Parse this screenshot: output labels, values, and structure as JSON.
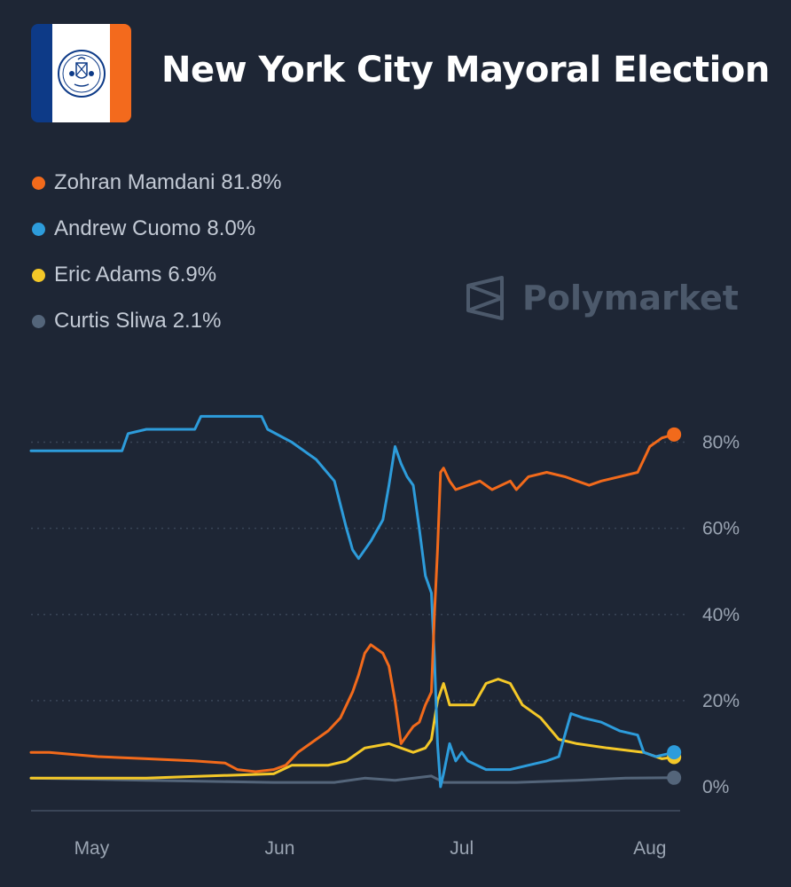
{
  "header": {
    "title": "New York City Mayoral Election"
  },
  "watermark": {
    "brand": "Polymarket"
  },
  "legend": [
    {
      "name": "Zohran Mamdani",
      "pct": "81.8%",
      "color": "#f26a1b"
    },
    {
      "name": "Andrew Cuomo",
      "pct": "8.0%",
      "color": "#2d9cdb"
    },
    {
      "name": "Eric Adams",
      "pct": "6.9%",
      "color": "#f4c828"
    },
    {
      "name": "Curtis Sliwa",
      "pct": "2.1%",
      "color": "#54657a"
    }
  ],
  "chart_data": {
    "type": "line",
    "title": "New York City Mayoral Election",
    "xlabel": "",
    "ylabel": "",
    "x_range": [
      "2025-04-21",
      "2025-08-06"
    ],
    "ylim": [
      0,
      90
    ],
    "y_ticks": [
      0,
      20,
      40,
      60,
      80
    ],
    "y_tick_labels": [
      "0%",
      "20%",
      "40%",
      "60%",
      "80%"
    ],
    "x_ticks": [
      {
        "date": "2025-05-01",
        "label": "May"
      },
      {
        "date": "2025-06-01",
        "label": "Jun"
      },
      {
        "date": "2025-07-01",
        "label": "Jul"
      },
      {
        "date": "2025-08-01",
        "label": "Aug"
      }
    ],
    "grid": "horizontal dotted",
    "legend_position": "top-left",
    "series": [
      {
        "name": "Zohran Mamdani",
        "color": "#f26a1b",
        "points": [
          [
            "2025-04-21",
            8
          ],
          [
            "2025-04-24",
            8
          ],
          [
            "2025-05-02",
            7
          ],
          [
            "2025-05-10",
            6.5
          ],
          [
            "2025-05-18",
            6
          ],
          [
            "2025-05-23",
            5.5
          ],
          [
            "2025-05-25",
            4
          ],
          [
            "2025-05-28",
            3.5
          ],
          [
            "2025-05-31",
            4
          ],
          [
            "2025-06-02",
            5
          ],
          [
            "2025-06-04",
            8
          ],
          [
            "2025-06-07",
            11
          ],
          [
            "2025-06-09",
            13
          ],
          [
            "2025-06-11",
            16
          ],
          [
            "2025-06-13",
            22
          ],
          [
            "2025-06-14",
            26
          ],
          [
            "2025-06-15",
            31
          ],
          [
            "2025-06-16",
            33
          ],
          [
            "2025-06-18",
            31
          ],
          [
            "2025-06-19",
            28
          ],
          [
            "2025-06-20",
            20
          ],
          [
            "2025-06-21",
            10
          ],
          [
            "2025-06-22",
            12
          ],
          [
            "2025-06-23",
            14
          ],
          [
            "2025-06-24",
            15
          ],
          [
            "2025-06-25",
            19
          ],
          [
            "2025-06-26",
            22
          ],
          [
            "2025-06-26T12:00",
            40
          ],
          [
            "2025-06-27",
            55
          ],
          [
            "2025-06-27T12:00",
            73
          ],
          [
            "2025-06-28",
            74
          ],
          [
            "2025-06-29",
            71
          ],
          [
            "2025-06-30",
            69
          ],
          [
            "2025-07-02",
            70
          ],
          [
            "2025-07-04",
            71
          ],
          [
            "2025-07-06",
            69
          ],
          [
            "2025-07-09",
            71
          ],
          [
            "2025-07-10",
            69
          ],
          [
            "2025-07-12",
            72
          ],
          [
            "2025-07-15",
            73
          ],
          [
            "2025-07-18",
            72
          ],
          [
            "2025-07-20",
            71
          ],
          [
            "2025-07-22",
            70
          ],
          [
            "2025-07-24",
            71
          ],
          [
            "2025-07-27",
            72
          ],
          [
            "2025-07-30",
            73
          ],
          [
            "2025-07-31",
            76
          ],
          [
            "2025-08-01",
            79
          ],
          [
            "2025-08-03",
            81
          ],
          [
            "2025-08-05",
            81.8
          ]
        ]
      },
      {
        "name": "Andrew Cuomo",
        "color": "#2d9cdb",
        "points": [
          [
            "2025-04-21",
            78
          ],
          [
            "2025-05-06",
            78
          ],
          [
            "2025-05-07",
            82
          ],
          [
            "2025-05-10",
            83
          ],
          [
            "2025-05-18",
            83
          ],
          [
            "2025-05-19",
            86
          ],
          [
            "2025-05-29",
            86
          ],
          [
            "2025-05-30",
            83
          ],
          [
            "2025-06-03",
            80
          ],
          [
            "2025-06-07",
            76
          ],
          [
            "2025-06-10",
            71
          ],
          [
            "2025-06-12",
            60
          ],
          [
            "2025-06-13",
            55
          ],
          [
            "2025-06-14",
            53
          ],
          [
            "2025-06-16",
            57
          ],
          [
            "2025-06-18",
            62
          ],
          [
            "2025-06-19",
            70
          ],
          [
            "2025-06-20",
            79
          ],
          [
            "2025-06-21",
            75
          ],
          [
            "2025-06-22",
            72
          ],
          [
            "2025-06-23",
            70
          ],
          [
            "2025-06-24",
            60
          ],
          [
            "2025-06-25",
            49
          ],
          [
            "2025-06-26",
            45
          ],
          [
            "2025-06-26T12:00",
            30
          ],
          [
            "2025-06-27",
            10
          ],
          [
            "2025-06-27T12:00",
            0
          ],
          [
            "2025-06-28",
            3
          ],
          [
            "2025-06-29",
            10
          ],
          [
            "2025-06-30",
            6
          ],
          [
            "2025-07-01",
            8
          ],
          [
            "2025-07-02",
            6
          ],
          [
            "2025-07-05",
            4
          ],
          [
            "2025-07-09",
            4
          ],
          [
            "2025-07-12",
            5
          ],
          [
            "2025-07-15",
            6
          ],
          [
            "2025-07-17",
            7
          ],
          [
            "2025-07-18",
            12
          ],
          [
            "2025-07-19",
            17
          ],
          [
            "2025-07-21",
            16
          ],
          [
            "2025-07-24",
            15
          ],
          [
            "2025-07-27",
            13
          ],
          [
            "2025-07-30",
            12
          ],
          [
            "2025-07-31",
            8
          ],
          [
            "2025-08-02",
            7
          ],
          [
            "2025-08-05",
            8
          ]
        ]
      },
      {
        "name": "Eric Adams",
        "color": "#f4c828",
        "points": [
          [
            "2025-04-21",
            2
          ],
          [
            "2025-05-10",
            2
          ],
          [
            "2025-05-20",
            2.5
          ],
          [
            "2025-05-31",
            3
          ],
          [
            "2025-06-03",
            5
          ],
          [
            "2025-06-09",
            5
          ],
          [
            "2025-06-12",
            6
          ],
          [
            "2025-06-15",
            9
          ],
          [
            "2025-06-19",
            10
          ],
          [
            "2025-06-21",
            9
          ],
          [
            "2025-06-23",
            8
          ],
          [
            "2025-06-25",
            9
          ],
          [
            "2025-06-26",
            11
          ],
          [
            "2025-06-27",
            20
          ],
          [
            "2025-06-28",
            24
          ],
          [
            "2025-06-29",
            19
          ],
          [
            "2025-07-01",
            19
          ],
          [
            "2025-07-03",
            19
          ],
          [
            "2025-07-05",
            24
          ],
          [
            "2025-07-07",
            25
          ],
          [
            "2025-07-09",
            24
          ],
          [
            "2025-07-11",
            19
          ],
          [
            "2025-07-14",
            16
          ],
          [
            "2025-07-17",
            11
          ],
          [
            "2025-07-20",
            10
          ],
          [
            "2025-07-25",
            9
          ],
          [
            "2025-07-31",
            8
          ],
          [
            "2025-08-03",
            6.5
          ],
          [
            "2025-08-05",
            6.9
          ]
        ]
      },
      {
        "name": "Curtis Sliwa",
        "color": "#54657a",
        "points": [
          [
            "2025-04-21",
            2
          ],
          [
            "2025-05-10",
            1.5
          ],
          [
            "2025-05-31",
            1
          ],
          [
            "2025-06-10",
            1
          ],
          [
            "2025-06-15",
            2
          ],
          [
            "2025-06-20",
            1.5
          ],
          [
            "2025-06-26",
            2.5
          ],
          [
            "2025-06-28",
            1
          ],
          [
            "2025-07-10",
            1
          ],
          [
            "2025-07-20",
            1.5
          ],
          [
            "2025-07-28",
            2
          ],
          [
            "2025-08-05",
            2.1
          ]
        ]
      }
    ]
  }
}
